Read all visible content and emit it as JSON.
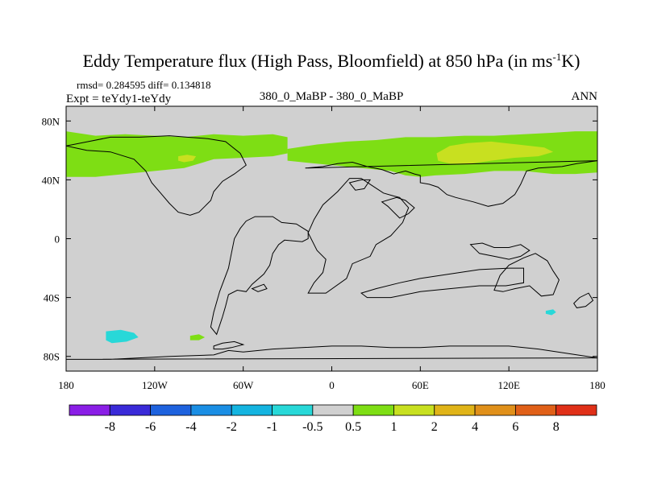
{
  "chart_data": {
    "type": "contour-map",
    "title": "Eddy Temperature flux (High Pass, Bloomfield) at 850 hPa (in ms",
    "title_superscript": "-1",
    "title_tail": "K)",
    "stats_label": "rmsd= 0.284595 diff= 0.134818",
    "expt_label": "Expt = teYdy1-teYdy",
    "case_label": "380_0_MaBP - 380_0_MaBP",
    "season_label": "ANN",
    "xlim": [
      -180,
      180
    ],
    "ylim": [
      -90,
      90
    ],
    "x_ticks": [
      {
        "value": -180,
        "label": "180"
      },
      {
        "value": -120,
        "label": "120W"
      },
      {
        "value": -60,
        "label": "60W"
      },
      {
        "value": 0,
        "label": "0"
      },
      {
        "value": 60,
        "label": "60E"
      },
      {
        "value": 120,
        "label": "120E"
      },
      {
        "value": 180,
        "label": "180"
      }
    ],
    "y_ticks": [
      {
        "value": 80,
        "label": "80N"
      },
      {
        "value": 40,
        "label": "40N"
      },
      {
        "value": 0,
        "label": "0"
      },
      {
        "value": -40,
        "label": "40S"
      },
      {
        "value": -80,
        "label": "80S"
      }
    ],
    "contour_levels": [
      "-8",
      "-6",
      "-4",
      "-2",
      "-1",
      "-0.5",
      "0.5",
      "1",
      "2",
      "4",
      "6",
      "8"
    ],
    "colorbar_colors": [
      "#8a1ee6",
      "#3a2ad8",
      "#1e62de",
      "#1a8ee4",
      "#14b4e0",
      "#28d8d8",
      "#d0d0d0",
      "#7ede14",
      "#c8e020",
      "#e0b418",
      "#e0901a",
      "#e06018",
      "#e03018"
    ],
    "background_color": "#d0d0d0",
    "regions": [
      {
        "name": "nh-green-band-west",
        "level": "0.5 to 1",
        "color": "#7ede14",
        "points": [
          [
            -180,
            73
          ],
          [
            -160,
            70
          ],
          [
            -140,
            71
          ],
          [
            -120,
            70
          ],
          [
            -100,
            69
          ],
          [
            -80,
            71
          ],
          [
            -60,
            70
          ],
          [
            -40,
            71
          ],
          [
            -30,
            69
          ],
          [
            -30,
            58
          ],
          [
            -40,
            56
          ],
          [
            -60,
            55
          ],
          [
            -80,
            54
          ],
          [
            -100,
            48
          ],
          [
            -120,
            46
          ],
          [
            -140,
            44
          ],
          [
            -160,
            42
          ],
          [
            -180,
            42
          ]
        ]
      },
      {
        "name": "nh-green-band-east",
        "level": "0.5 to 1",
        "color": "#7ede14",
        "points": [
          [
            -30,
            61
          ],
          [
            -10,
            64
          ],
          [
            10,
            66
          ],
          [
            30,
            67
          ],
          [
            50,
            69
          ],
          [
            70,
            69
          ],
          [
            90,
            70
          ],
          [
            110,
            70
          ],
          [
            130,
            71
          ],
          [
            150,
            72
          ],
          [
            165,
            73
          ],
          [
            180,
            73
          ],
          [
            180,
            45
          ],
          [
            165,
            44
          ],
          [
            150,
            44
          ],
          [
            130,
            46
          ],
          [
            110,
            46
          ],
          [
            90,
            44
          ],
          [
            70,
            43
          ],
          [
            60,
            42
          ],
          [
            50,
            43
          ],
          [
            40,
            46
          ],
          [
            20,
            48
          ],
          [
            0,
            50
          ],
          [
            -20,
            52
          ],
          [
            -30,
            53
          ]
        ]
      },
      {
        "name": "nh-yellow-patch-east",
        "level": "1 to 2",
        "color": "#c8e020",
        "points": [
          [
            71,
            58
          ],
          [
            80,
            63
          ],
          [
            92,
            65
          ],
          [
            108,
            66
          ],
          [
            126,
            64
          ],
          [
            144,
            62
          ],
          [
            150,
            59
          ],
          [
            140,
            56
          ],
          [
            124,
            55
          ],
          [
            108,
            53
          ],
          [
            94,
            51
          ],
          [
            80,
            51
          ],
          [
            72,
            53
          ]
        ]
      },
      {
        "name": "nh-yellow-patch-west",
        "level": "1 to 2",
        "color": "#c8e020",
        "points": [
          [
            -104,
            56
          ],
          [
            -98,
            57
          ],
          [
            -92,
            56
          ],
          [
            -94,
            53
          ],
          [
            -100,
            52
          ],
          [
            -104,
            53
          ]
        ]
      },
      {
        "name": "sh-cyan-patch-west",
        "level": "-1 to -0.5",
        "color": "#28d8d8",
        "points": [
          [
            -153,
            -63
          ],
          [
            -143,
            -62
          ],
          [
            -134,
            -64
          ],
          [
            -131,
            -67
          ],
          [
            -139,
            -70
          ],
          [
            -149,
            -71
          ],
          [
            -153,
            -69
          ]
        ]
      },
      {
        "name": "sh-green-patch",
        "level": "0.5 to 1",
        "color": "#7ede14",
        "points": [
          [
            -96,
            -66
          ],
          [
            -90,
            -65
          ],
          [
            -86,
            -67
          ],
          [
            -90,
            -69
          ],
          [
            -96,
            -69
          ]
        ]
      },
      {
        "name": "sh-cyan-patch-east",
        "level": "-1 to -0.5",
        "color": "#28d8d8",
        "points": [
          [
            145,
            -49
          ],
          [
            150,
            -48
          ],
          [
            152,
            -50
          ],
          [
            149,
            -52
          ],
          [
            145,
            -51
          ]
        ]
      }
    ],
    "coastlines": [
      {
        "name": "antarctica-coast",
        "points": [
          [
            -180,
            -82
          ],
          [
            -150,
            -82
          ],
          [
            -110,
            -80
          ],
          [
            -80,
            -79
          ],
          [
            -70,
            -76
          ],
          [
            -60,
            -77
          ],
          [
            -40,
            -75
          ],
          [
            -20,
            -74
          ],
          [
            0,
            -73
          ],
          [
            20,
            -73
          ],
          [
            40,
            -74
          ],
          [
            60,
            -74
          ],
          [
            80,
            -73
          ],
          [
            100,
            -73
          ],
          [
            120,
            -73
          ],
          [
            140,
            -75
          ],
          [
            160,
            -78
          ],
          [
            180,
            -81
          ]
        ]
      },
      {
        "name": "antarctic-peninsula-outline",
        "points": [
          [
            -80,
            -73
          ],
          [
            -74,
            -71
          ],
          [
            -66,
            -70
          ],
          [
            -60,
            -72
          ],
          [
            -68,
            -74
          ],
          [
            -74,
            -75
          ],
          [
            -80,
            -75
          ]
        ]
      },
      {
        "name": "south-america-outline",
        "points": [
          [
            -78,
            -65
          ],
          [
            -74,
            -53
          ],
          [
            -72,
            -46
          ],
          [
            -70,
            -38
          ],
          [
            -64,
            -35
          ],
          [
            -58,
            -36
          ],
          [
            -54,
            -31
          ],
          [
            -46,
            -24
          ],
          [
            -42,
            -18
          ],
          [
            -40,
            -10
          ],
          [
            -36,
            -4
          ],
          [
            -32,
            -1
          ],
          [
            -20,
            -2
          ],
          [
            -16,
            0
          ],
          [
            -16,
            5
          ],
          [
            -24,
            10
          ],
          [
            -34,
            11
          ],
          [
            -40,
            15
          ],
          [
            -52,
            15
          ],
          [
            -58,
            12
          ],
          [
            -62,
            7
          ],
          [
            -66,
            0
          ],
          [
            -68,
            -10
          ],
          [
            -70,
            -20
          ],
          [
            -76,
            -36
          ],
          [
            -80,
            -50
          ],
          [
            -82,
            -60
          ]
        ]
      },
      {
        "name": "africa-outline",
        "points": [
          [
            -16,
            -37
          ],
          [
            -4,
            -37
          ],
          [
            10,
            -27
          ],
          [
            14,
            -17
          ],
          [
            26,
            -12
          ],
          [
            30,
            -4
          ],
          [
            40,
            2
          ],
          [
            48,
            11
          ],
          [
            52,
            21
          ],
          [
            46,
            28
          ],
          [
            42,
            29
          ],
          [
            35,
            31
          ],
          [
            26,
            37
          ],
          [
            20,
            41
          ],
          [
            12,
            41
          ],
          [
            4,
            32
          ],
          [
            -6,
            23
          ],
          [
            -12,
            13
          ],
          [
            -16,
            4
          ],
          [
            -10,
            -8
          ],
          [
            -4,
            -14
          ],
          [
            -6,
            -23
          ],
          [
            -12,
            -30
          ]
        ]
      },
      {
        "name": "eurasia-outline",
        "points": [
          [
            -18,
            48
          ],
          [
            -6,
            49
          ],
          [
            4,
            51
          ],
          [
            14,
            52
          ],
          [
            24,
            49
          ],
          [
            34,
            47
          ],
          [
            42,
            44
          ],
          [
            50,
            46
          ],
          [
            56,
            44
          ],
          [
            60,
            43
          ],
          [
            60,
            38
          ],
          [
            66,
            37
          ],
          [
            72,
            35
          ],
          [
            78,
            30
          ],
          [
            84,
            28
          ],
          [
            96,
            25
          ],
          [
            106,
            22
          ],
          [
            116,
            24
          ],
          [
            124,
            30
          ],
          [
            128,
            37
          ],
          [
            132,
            46
          ],
          [
            140,
            48
          ],
          [
            156,
            49
          ],
          [
            166,
            51
          ],
          [
            180,
            53
          ]
        ]
      },
      {
        "name": "north-america-outline",
        "points": [
          [
            -180,
            63
          ],
          [
            -165,
            66
          ],
          [
            -150,
            69
          ],
          [
            -130,
            69
          ],
          [
            -110,
            70
          ],
          [
            -98,
            69
          ],
          [
            -84,
            68
          ],
          [
            -72,
            66
          ],
          [
            -62,
            58
          ],
          [
            -58,
            50
          ],
          [
            -66,
            44
          ],
          [
            -74,
            39
          ],
          [
            -80,
            32
          ],
          [
            -82,
            26
          ],
          [
            -86,
            22
          ],
          [
            -90,
            18
          ],
          [
            -96,
            16
          ],
          [
            -104,
            18
          ],
          [
            -110,
            24
          ],
          [
            -116,
            31
          ],
          [
            -122,
            38
          ],
          [
            -126,
            46
          ],
          [
            -134,
            54
          ],
          [
            -150,
            59
          ],
          [
            -166,
            60
          ]
        ]
      },
      {
        "name": "australia-outline",
        "points": [
          [
            110,
            -35
          ],
          [
            114,
            -25
          ],
          [
            120,
            -18
          ],
          [
            130,
            -13
          ],
          [
            138,
            -10
          ],
          [
            146,
            -15
          ],
          [
            150,
            -22
          ],
          [
            154,
            -28
          ],
          [
            150,
            -38
          ],
          [
            142,
            -39
          ],
          [
            134,
            -32
          ],
          [
            124,
            -34
          ],
          [
            116,
            -36
          ]
        ]
      },
      {
        "name": "new-zealand-outline",
        "points": [
          [
            164,
            -44
          ],
          [
            168,
            -40
          ],
          [
            174,
            -37
          ],
          [
            177,
            -42
          ],
          [
            172,
            -46
          ],
          [
            166,
            -47
          ]
        ]
      },
      {
        "name": "southern-ocean-ridge-outline",
        "points": [
          [
            20,
            -37
          ],
          [
            30,
            -34
          ],
          [
            46,
            -30
          ],
          [
            60,
            -27
          ],
          [
            80,
            -24
          ],
          [
            100,
            -21
          ],
          [
            120,
            -20
          ],
          [
            130,
            -20
          ],
          [
            130,
            -30
          ],
          [
            118,
            -32
          ],
          [
            100,
            -32
          ],
          [
            80,
            -34
          ],
          [
            60,
            -36
          ],
          [
            40,
            -40
          ],
          [
            24,
            -40
          ]
        ]
      },
      {
        "name": "indonesian-archipelago-outline",
        "points": [
          [
            94,
            -4
          ],
          [
            100,
            -10
          ],
          [
            110,
            -12
          ],
          [
            120,
            -14
          ],
          [
            128,
            -12
          ],
          [
            134,
            -8
          ],
          [
            128,
            -4
          ],
          [
            120,
            -6
          ],
          [
            110,
            -6
          ],
          [
            102,
            -3
          ]
        ]
      },
      {
        "name": "pacific-shelf-outline",
        "points": [
          [
            -54,
            -34
          ],
          [
            -50,
            -36
          ],
          [
            -44,
            -34
          ],
          [
            -46,
            -31
          ]
        ]
      },
      {
        "name": "arctic-island-outline",
        "points": [
          [
            12,
            38
          ],
          [
            20,
            40
          ],
          [
            26,
            40
          ],
          [
            22,
            34
          ],
          [
            16,
            33
          ]
        ]
      },
      {
        "name": "arabia-outline",
        "points": [
          [
            34,
            25
          ],
          [
            38,
            22
          ],
          [
            42,
            18
          ],
          [
            46,
            14
          ],
          [
            52,
            17
          ],
          [
            56,
            21
          ],
          [
            50,
            26
          ],
          [
            44,
            28
          ]
        ]
      }
    ]
  }
}
